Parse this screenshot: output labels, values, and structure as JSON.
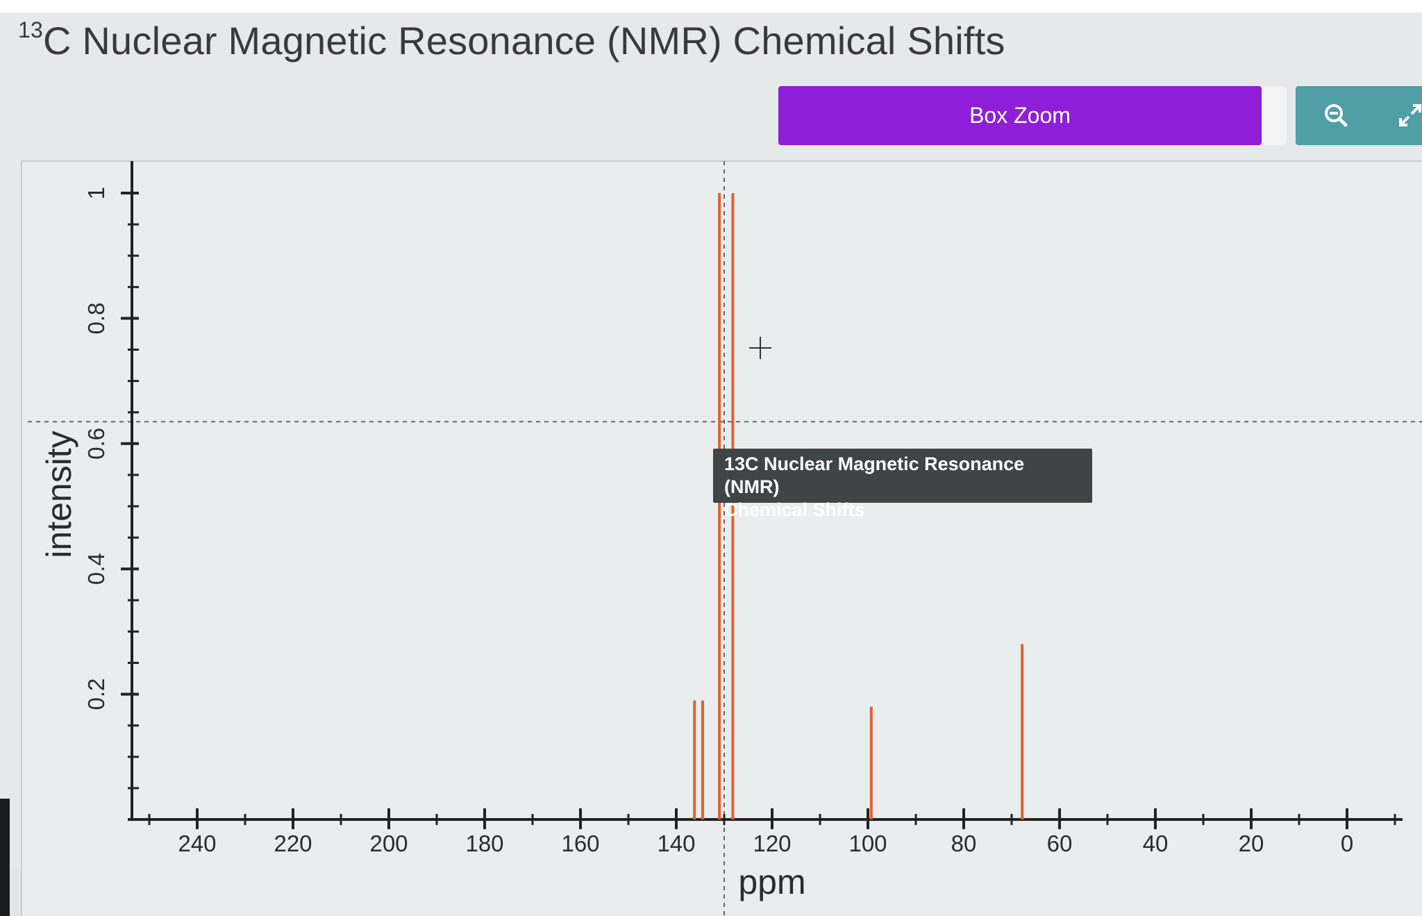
{
  "title": {
    "sup": "13",
    "text": "C Nuclear Magnetic Resonance (NMR) Chemical Shifts"
  },
  "toolbar": {
    "box_zoom_label": "Box Zoom",
    "zoom_icon": "magnifier-zoom-out-icon",
    "expand_icon": "expand-arrows-icon"
  },
  "tooltip": {
    "line1": "13C Nuclear Magnetic Resonance (NMR)",
    "line2": "Chemical Shifts"
  },
  "colors": {
    "peak": "#e0632f",
    "box_zoom": "#8e1ed8",
    "teal": "#4f9ea5"
  },
  "chart_data": {
    "type": "bar",
    "title": "13C Nuclear Magnetic Resonance (NMR) Chemical Shifts",
    "xlabel": "ppm",
    "ylabel": "intensity",
    "xlim": [
      250,
      -12
    ],
    "ylim": [
      0,
      1.05
    ],
    "x_reversed": true,
    "xticks": [
      240,
      220,
      200,
      180,
      160,
      140,
      120,
      100,
      80,
      60,
      40,
      20,
      0
    ],
    "yticks": [
      0.2,
      0.4,
      0.6,
      0.8,
      1
    ],
    "ytick_labels": [
      "0.2",
      "0.4",
      "0.6",
      "0.8",
      "1"
    ],
    "grid": false,
    "peaks": [
      {
        "ppm": 136.2,
        "intensity": 0.19
      },
      {
        "ppm": 134.5,
        "intensity": 0.19
      },
      {
        "ppm": 131.0,
        "intensity": 1.0
      },
      {
        "ppm": 128.2,
        "intensity": 1.0
      },
      {
        "ppm": 99.3,
        "intensity": 0.18
      },
      {
        "ppm": 67.8,
        "intensity": 0.28
      }
    ],
    "crosshair": {
      "ppm": 130.0,
      "intensity": 0.635
    }
  }
}
